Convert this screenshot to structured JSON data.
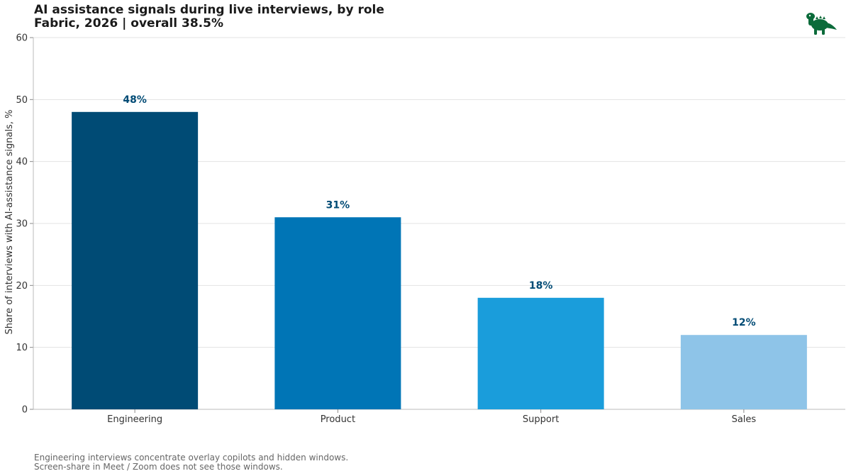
{
  "header": {
    "title": "AI assistance signals during live interviews, by role",
    "subtitle": "Fabric, 2026  |  overall 38.5%"
  },
  "logo": {
    "icon": "dinosaur-logo-icon",
    "color": "#0b6b3a"
  },
  "chart_data": {
    "type": "bar",
    "title": "AI assistance signals during live interviews, by role",
    "subtitle": "Fabric, 2026  |  overall 38.5%",
    "categories": [
      "Engineering",
      "Product",
      "Support",
      "Sales"
    ],
    "values": [
      48,
      31,
      18,
      12
    ],
    "value_labels": [
      "48%",
      "31%",
      "18%",
      "12%"
    ],
    "colors": [
      "#004b75",
      "#0075b6",
      "#1a9ddb",
      "#8ec4e8"
    ],
    "label_color": "#004b75",
    "xlabel": "",
    "ylabel": "Share of interviews with AI-assistance signals, %",
    "ylim": [
      0,
      60
    ],
    "yticks": [
      0,
      10,
      20,
      30,
      40,
      50,
      60
    ],
    "grid": true
  },
  "footnote": {
    "line1": "Engineering interviews concentrate overlay copilots and hidden windows.",
    "line2": "Screen-share in Meet / Zoom does not see those windows."
  }
}
